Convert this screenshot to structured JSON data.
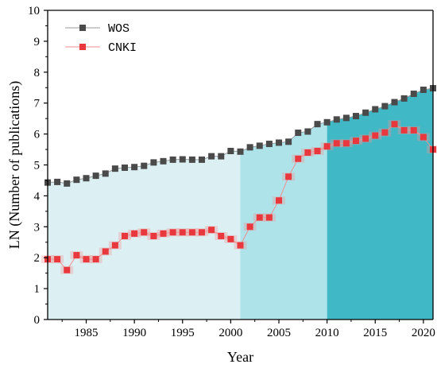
{
  "chart_data": {
    "type": "line",
    "xlabel": "Year",
    "ylabel": "LN (Number of publications)",
    "xlim": [
      1981,
      2021
    ],
    "ylim": [
      0,
      10
    ],
    "x_ticks": [
      1985,
      1990,
      1995,
      2000,
      2005,
      2010,
      2015,
      2020
    ],
    "y_ticks": [
      0,
      1,
      2,
      3,
      4,
      5,
      6,
      7,
      8,
      9,
      10
    ],
    "legend_position": "top-left",
    "grid": false,
    "x": [
      1981,
      1982,
      1983,
      1984,
      1985,
      1986,
      1987,
      1988,
      1989,
      1990,
      1991,
      1992,
      1993,
      1994,
      1995,
      1996,
      1997,
      1998,
      1999,
      2000,
      2001,
      2002,
      2003,
      2004,
      2005,
      2006,
      2007,
      2008,
      2009,
      2010,
      2011,
      2012,
      2013,
      2014,
      2015,
      2016,
      2017,
      2018,
      2019,
      2020,
      2021
    ],
    "series": [
      {
        "name": "WOS",
        "marker_color": "#4a4a4a",
        "line_color": "#9a9a9a",
        "values": [
          4.43,
          4.45,
          4.4,
          4.52,
          4.57,
          4.65,
          4.72,
          4.88,
          4.91,
          4.93,
          4.97,
          5.08,
          5.12,
          5.17,
          5.18,
          5.17,
          5.17,
          5.28,
          5.28,
          5.45,
          5.43,
          5.57,
          5.62,
          5.68,
          5.72,
          5.75,
          6.04,
          6.08,
          6.32,
          6.38,
          6.47,
          6.52,
          6.58,
          6.69,
          6.8,
          6.9,
          7.03,
          7.15,
          7.3,
          7.43,
          7.48
        ]
      },
      {
        "name": "CNKI",
        "marker_color": "#e8383d",
        "line_color": "#f08f93",
        "values": [
          1.95,
          1.95,
          1.6,
          2.08,
          1.95,
          1.95,
          2.2,
          2.4,
          2.7,
          2.78,
          2.82,
          2.7,
          2.78,
          2.82,
          2.82,
          2.82,
          2.82,
          2.9,
          2.7,
          2.6,
          2.4,
          3.0,
          3.3,
          3.3,
          3.85,
          4.62,
          5.2,
          5.4,
          5.45,
          5.6,
          5.7,
          5.7,
          5.78,
          5.85,
          5.95,
          6.05,
          6.32,
          6.12,
          6.12,
          5.9,
          5.5
        ]
      }
    ],
    "background_bands": [
      {
        "from": 1981,
        "to": 2001,
        "color": "#dcf0f4"
      },
      {
        "from": 2001,
        "to": 2010,
        "color": "#aee3e9"
      },
      {
        "from": 2010,
        "to": 2021,
        "color": "#41b8c6"
      }
    ]
  }
}
